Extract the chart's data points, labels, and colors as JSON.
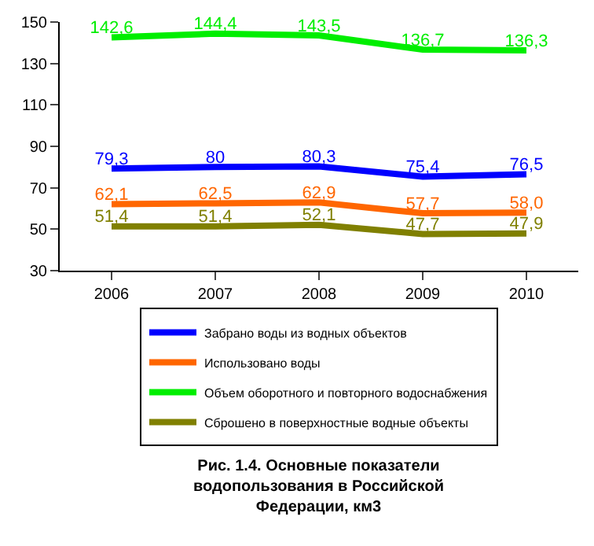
{
  "chart_data": {
    "type": "line",
    "title": "Рис. 1.4. Основные показатели водопользования в Российской Федерации, км3",
    "categories": [
      "2006",
      "2007",
      "2008",
      "2009",
      "2010"
    ],
    "series": [
      {
        "name": "Забрано воды из водных объектов",
        "color": "#0000ff",
        "values": [
          79.3,
          80,
          80.3,
          75.4,
          76.5
        ],
        "value_labels": [
          "79,3",
          "80",
          "80,3",
          "75,4",
          "76,5"
        ]
      },
      {
        "name": "Использовано воды",
        "color": "#ff6600",
        "values": [
          62.1,
          62.5,
          62.9,
          57.7,
          58.0
        ],
        "value_labels": [
          "62,1",
          "62,5",
          "62,9",
          "57,7",
          "58,0"
        ]
      },
      {
        "name": "Объем оборотного и повторного водоснабжения",
        "color": "#00ee00",
        "values": [
          142.6,
          144.4,
          143.5,
          136.7,
          136.3
        ],
        "value_labels": [
          "142,6",
          "144,4",
          "143,5",
          "136,7",
          "136,3"
        ]
      },
      {
        "name": "Сброшено в поверхностные водные объекты",
        "color": "#808000",
        "values": [
          51.4,
          51.4,
          52.1,
          47.7,
          47.9
        ],
        "value_labels": [
          "51,4",
          "51,4",
          "52,1",
          "47,7",
          "47,9"
        ]
      }
    ],
    "ylim": [
      30,
      150
    ],
    "yticks": [
      30,
      50,
      70,
      90,
      110,
      130,
      150
    ],
    "legend": "bottom",
    "line_style": "solid",
    "marker": "none"
  }
}
